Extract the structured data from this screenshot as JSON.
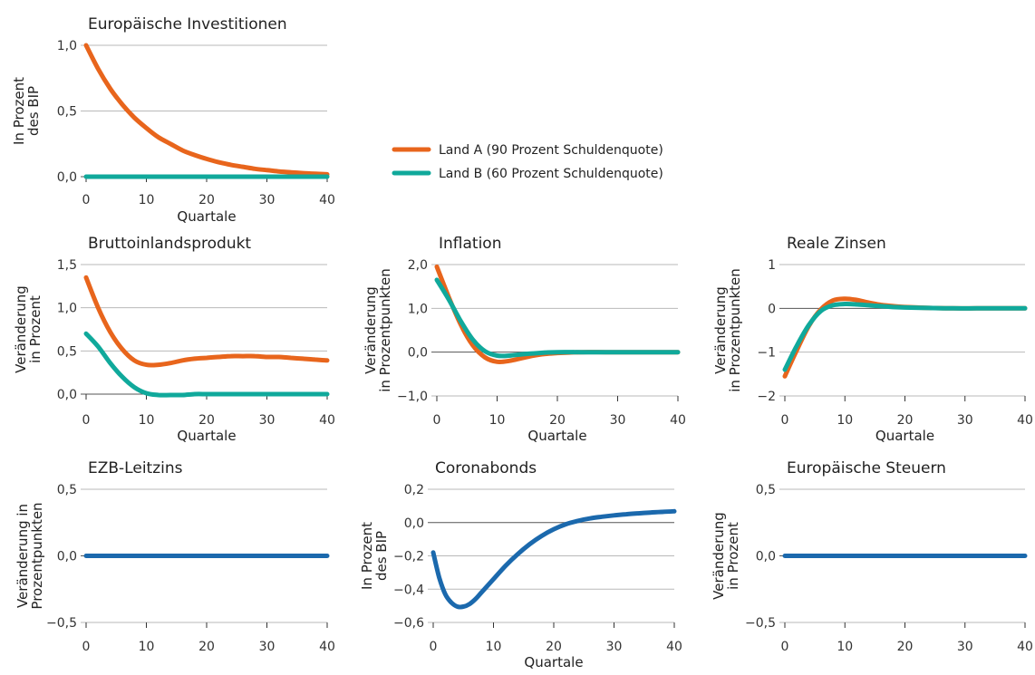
{
  "colors": {
    "land_a": "#e8651c",
    "land_b": "#10a99b",
    "blue": "#1b69ad"
  },
  "legend": {
    "land_a": "Land A (90 Prozent Schuldenquote)",
    "land_b": "Land B (60 Prozent Schuldenquote)",
    "placement": "center-top"
  },
  "chart_data": [
    {
      "id": "investitionen",
      "type": "line",
      "title": "Europäische Investitionen",
      "ylabel": [
        "In Prozent",
        "des BIP"
      ],
      "xlabel": "Quartale",
      "xlim": [
        0,
        40
      ],
      "xticks": [
        0,
        10,
        20,
        30,
        40
      ],
      "xtick_labels": [
        "0",
        "10",
        "20",
        "30",
        "40"
      ],
      "ylim": [
        0,
        1.0
      ],
      "yticks": [
        0,
        0.5,
        1.0
      ],
      "ytick_labels": [
        "0,0",
        "0,5",
        "1,0"
      ],
      "grid": true,
      "series": [
        {
          "name": "Land A (90 Prozent Schuldenquote)",
          "color_key": "land_a",
          "x": [
            0,
            2,
            4,
            6,
            8,
            10,
            12,
            14,
            16,
            18,
            20,
            22,
            24,
            26,
            28,
            30,
            32,
            34,
            36,
            38,
            40
          ],
          "y": [
            1.0,
            0.82,
            0.67,
            0.55,
            0.45,
            0.37,
            0.3,
            0.25,
            0.2,
            0.165,
            0.135,
            0.11,
            0.09,
            0.075,
            0.06,
            0.05,
            0.04,
            0.033,
            0.027,
            0.022,
            0.018
          ]
        },
        {
          "name": "Land B (60 Prozent Schuldenquote)",
          "color_key": "land_b",
          "x": [
            0,
            40
          ],
          "y": [
            0,
            0
          ]
        }
      ]
    },
    {
      "id": "bip",
      "type": "line",
      "title": "Bruttoinlandsprodukt",
      "ylabel": [
        "Veränderung",
        "in Prozent"
      ],
      "xlabel": "Quartale",
      "xlim": [
        0,
        40
      ],
      "xticks": [
        0,
        10,
        20,
        30,
        40
      ],
      "xtick_labels": [
        "0",
        "10",
        "20",
        "30",
        "40"
      ],
      "ylim": [
        0,
        1.5
      ],
      "yticks": [
        0,
        0.5,
        1.0,
        1.5
      ],
      "ytick_labels": [
        "0,0",
        "0,5",
        "1,0",
        "1,5"
      ],
      "grid": true,
      "series": [
        {
          "name": "Land A (90 Prozent Schuldenquote)",
          "color_key": "land_a",
          "x": [
            0,
            2,
            4,
            6,
            8,
            10,
            12,
            14,
            16,
            18,
            20,
            22,
            24,
            26,
            28,
            30,
            32,
            34,
            36,
            38,
            40
          ],
          "y": [
            1.35,
            1.0,
            0.72,
            0.52,
            0.39,
            0.34,
            0.34,
            0.36,
            0.39,
            0.41,
            0.42,
            0.43,
            0.44,
            0.44,
            0.44,
            0.43,
            0.43,
            0.42,
            0.41,
            0.4,
            0.39
          ]
        },
        {
          "name": "Land B (60 Prozent Schuldenquote)",
          "color_key": "land_b",
          "x": [
            0,
            2,
            4,
            6,
            8,
            10,
            12,
            14,
            16,
            18,
            20,
            22,
            24,
            26,
            28,
            30,
            32,
            34,
            36,
            38,
            40
          ],
          "y": [
            0.7,
            0.55,
            0.36,
            0.2,
            0.08,
            0.01,
            -0.01,
            -0.01,
            -0.01,
            0.0,
            0.0,
            0.0,
            0.0,
            0.0,
            0.0,
            0.0,
            0.0,
            0.0,
            0.0,
            0.0,
            0.0
          ]
        }
      ]
    },
    {
      "id": "inflation",
      "type": "line",
      "title": "Inflation",
      "ylabel": [
        "Veränderung",
        "in Prozentpunkten"
      ],
      "xlabel": "Quartale",
      "xlim": [
        0,
        40
      ],
      "xticks": [
        0,
        10,
        20,
        30,
        40
      ],
      "xtick_labels": [
        "0",
        "10",
        "20",
        "30",
        "40"
      ],
      "ylim": [
        -1.0,
        2.0
      ],
      "yticks": [
        -1.0,
        0,
        1.0,
        2.0
      ],
      "ytick_labels": [
        "−1,0",
        "0,0",
        "1,0",
        "2,0"
      ],
      "grid": true,
      "series": [
        {
          "name": "Land A (90 Prozent Schuldenquote)",
          "color_key": "land_a",
          "x": [
            0,
            2,
            4,
            6,
            8,
            10,
            12,
            14,
            16,
            18,
            20,
            22,
            24,
            28,
            32,
            36,
            40
          ],
          "y": [
            1.95,
            1.25,
            0.62,
            0.15,
            -0.12,
            -0.22,
            -0.2,
            -0.14,
            -0.08,
            -0.04,
            -0.02,
            -0.01,
            0.0,
            0.0,
            0.0,
            0.0,
            0.0
          ]
        },
        {
          "name": "Land B (60 Prozent Schuldenquote)",
          "color_key": "land_b",
          "x": [
            0,
            2,
            4,
            6,
            8,
            10,
            12,
            14,
            16,
            18,
            20,
            24,
            28,
            32,
            36,
            40
          ],
          "y": [
            1.65,
            1.2,
            0.7,
            0.28,
            0.02,
            -0.08,
            -0.08,
            -0.05,
            -0.03,
            -0.01,
            0.0,
            0.0,
            0.0,
            0.0,
            0.0,
            0.0
          ]
        }
      ]
    },
    {
      "id": "zinsen",
      "type": "line",
      "title": "Reale Zinsen",
      "ylabel": [
        "Veränderung",
        "in Prozentpunkten"
      ],
      "xlabel": "Quartale",
      "xlim": [
        0,
        40
      ],
      "xticks": [
        0,
        10,
        20,
        30,
        40
      ],
      "xtick_labels": [
        "0",
        "10",
        "20",
        "30",
        "40"
      ],
      "ylim": [
        -2,
        1
      ],
      "yticks": [
        -2,
        -1,
        0,
        1
      ],
      "ytick_labels": [
        "−2",
        "−1",
        "0",
        "1"
      ],
      "grid": true,
      "series": [
        {
          "name": "Land A (90 Prozent Schuldenquote)",
          "color_key": "land_a",
          "x": [
            0,
            2,
            4,
            6,
            8,
            10,
            12,
            14,
            16,
            18,
            20,
            22,
            24,
            28,
            32,
            36,
            40
          ],
          "y": [
            -1.55,
            -0.95,
            -0.4,
            -0.02,
            0.18,
            0.22,
            0.19,
            0.13,
            0.08,
            0.05,
            0.03,
            0.02,
            0.01,
            0.0,
            0.0,
            0.0,
            0.0
          ]
        },
        {
          "name": "Land B (60 Prozent Schuldenquote)",
          "color_key": "land_b",
          "x": [
            0,
            2,
            4,
            6,
            8,
            10,
            12,
            14,
            16,
            18,
            20,
            24,
            28,
            32,
            36,
            40
          ],
          "y": [
            -1.4,
            -0.85,
            -0.38,
            -0.06,
            0.07,
            0.1,
            0.09,
            0.07,
            0.05,
            0.03,
            0.02,
            0.01,
            0.0,
            0.0,
            0.0,
            0.0
          ]
        }
      ]
    },
    {
      "id": "ezb",
      "type": "line",
      "title": "EZB-Leitzins",
      "ylabel": [
        "Veränderung in",
        "Prozentpunkten"
      ],
      "xlabel": "",
      "xlim": [
        0,
        40
      ],
      "xticks": [
        0,
        10,
        20,
        30,
        40
      ],
      "xtick_labels": [
        "0",
        "10",
        "20",
        "30",
        "40"
      ],
      "ylim": [
        -0.5,
        0.5
      ],
      "yticks": [
        -0.5,
        0,
        0.5
      ],
      "ytick_labels": [
        "−0,5",
        "0,0",
        "0,5"
      ],
      "grid": true,
      "series": [
        {
          "color_key": "blue",
          "x": [
            0,
            40
          ],
          "y": [
            0,
            0
          ]
        }
      ]
    },
    {
      "id": "coronabonds",
      "type": "line",
      "title": "Coronabonds",
      "ylabel": [
        "In Prozent",
        "des BIP"
      ],
      "xlabel": "Quartale",
      "xlim": [
        0,
        40
      ],
      "xticks": [
        0,
        10,
        20,
        30,
        40
      ],
      "xtick_labels": [
        "0",
        "10",
        "20",
        "30",
        "40"
      ],
      "ylim": [
        -0.6,
        0.2
      ],
      "yticks": [
        -0.6,
        -0.4,
        -0.2,
        0,
        0.2
      ],
      "ytick_labels": [
        "−0,6",
        "−0,4",
        "−0,2",
        "0,0",
        "0,2"
      ],
      "grid": true,
      "series": [
        {
          "color_key": "blue",
          "x": [
            0,
            1,
            2,
            3,
            4,
            5,
            6,
            7,
            8,
            10,
            12,
            14,
            16,
            18,
            20,
            22,
            24,
            26,
            28,
            30,
            32,
            34,
            36,
            38,
            40
          ],
          "y": [
            -0.18,
            -0.33,
            -0.43,
            -0.48,
            -0.505,
            -0.505,
            -0.49,
            -0.46,
            -0.42,
            -0.34,
            -0.26,
            -0.19,
            -0.13,
            -0.08,
            -0.04,
            -0.01,
            0.01,
            0.025,
            0.035,
            0.043,
            0.05,
            0.055,
            0.06,
            0.064,
            0.068
          ]
        }
      ]
    },
    {
      "id": "steuern",
      "type": "line",
      "title": "Europäische Steuern",
      "ylabel": [
        "Veränderung",
        "in Prozent"
      ],
      "xlabel": "",
      "xlim": [
        0,
        40
      ],
      "xticks": [
        0,
        10,
        20,
        30,
        40
      ],
      "xtick_labels": [
        "0",
        "10",
        "20",
        "30",
        "40"
      ],
      "ylim": [
        -0.5,
        0.5
      ],
      "yticks": [
        -0.5,
        0,
        0.5
      ],
      "ytick_labels": [
        "−0,5",
        "0,0",
        "0,5"
      ],
      "grid": true,
      "series": [
        {
          "color_key": "blue",
          "x": [
            0,
            40
          ],
          "y": [
            0,
            0
          ]
        }
      ]
    }
  ]
}
